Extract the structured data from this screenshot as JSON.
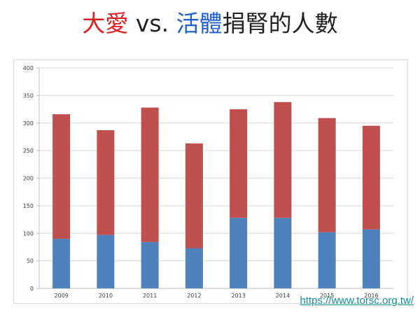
{
  "title": {
    "part1": "大愛",
    "part2": " vs. ",
    "part3": "活體",
    "part4": "捐腎的人數",
    "color1": "#e02020",
    "color2": "#222222",
    "color3": "#2060d0",
    "color4": "#222222"
  },
  "link": {
    "text": "https://www.torsc.org.tw/",
    "color": "#1a8fa0"
  },
  "chart_data": {
    "type": "bar",
    "stacked": true,
    "categories": [
      "2009",
      "2010",
      "2011",
      "2012",
      "2013",
      "2014",
      "2015",
      "2016"
    ],
    "series": [
      {
        "color": "#4f81bd",
        "values": [
          90,
          97,
          84,
          73,
          128,
          128,
          102,
          107
        ]
      },
      {
        "color": "#c0504d",
        "values": [
          226,
          190,
          244,
          190,
          197,
          210,
          207,
          188
        ]
      }
    ],
    "ylim": [
      0,
      400
    ],
    "yticks": [
      0,
      50,
      100,
      150,
      200,
      250,
      300,
      350,
      400
    ],
    "grid": true,
    "legend": "none"
  }
}
